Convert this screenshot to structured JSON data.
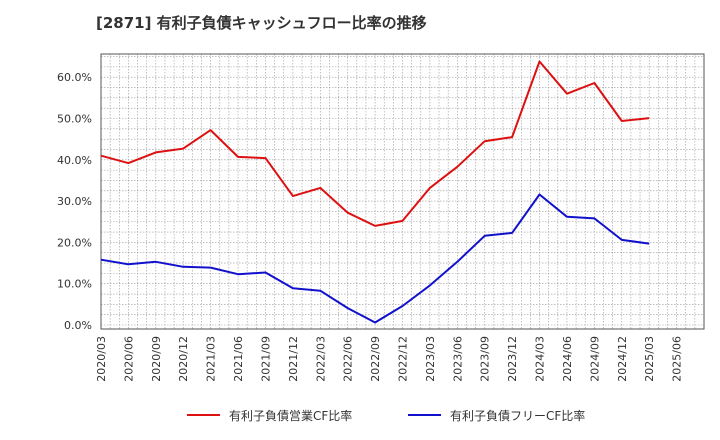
{
  "title": "[2871]  有利子負債キャッシュフロー比率の推移",
  "chart_data": {
    "type": "line",
    "x": [
      "2020/03",
      "2020/06",
      "2020/09",
      "2020/12",
      "2021/03",
      "2021/06",
      "2021/09",
      "2021/12",
      "2022/03",
      "2022/06",
      "2022/09",
      "2022/12",
      "2023/03",
      "2023/06",
      "2023/09",
      "2023/12",
      "2024/03",
      "2024/06",
      "2024/09",
      "2024/12",
      "2025/03",
      "2025/06"
    ],
    "y_ticks": [
      "0.0%",
      "10.0%",
      "20.0%",
      "30.0%",
      "40.0%",
      "50.0%",
      "60.0%"
    ],
    "ylim": [
      0,
      66
    ],
    "grid": true,
    "legend_position": "bottom",
    "series": [
      {
        "name": "有利子負債営業CF比率",
        "color": "#dd1111",
        "values": [
          41.0,
          39.2,
          41.8,
          42.7,
          47.2,
          40.7,
          40.4,
          31.2,
          33.2,
          27.2,
          24.0,
          25.2,
          33.2,
          38.3,
          44.5,
          45.5,
          63.8,
          56.0,
          58.6,
          49.4,
          50.1,
          null
        ]
      },
      {
        "name": "有利子負債フリーCF比率",
        "color": "#1111cc",
        "values": [
          15.8,
          14.7,
          15.3,
          14.1,
          13.9,
          12.3,
          12.7,
          8.9,
          8.3,
          4.1,
          0.6,
          4.6,
          9.6,
          15.3,
          21.6,
          22.3,
          31.6,
          26.2,
          25.8,
          20.6,
          19.7,
          null
        ]
      }
    ]
  }
}
